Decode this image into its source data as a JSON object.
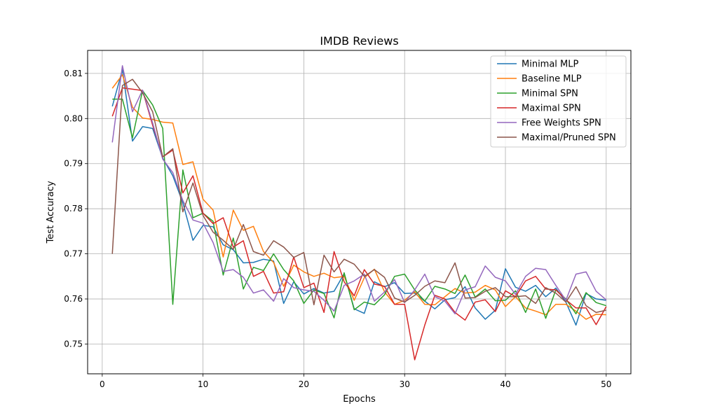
{
  "chart_data": {
    "type": "line",
    "title": "IMDB Reviews",
    "xlabel": "Epochs",
    "ylabel": "Test Accuracy",
    "xlim": [
      -1.45,
      52.45
    ],
    "ylim": [
      0.7434,
      0.8151
    ],
    "xticks": [
      0,
      10,
      20,
      30,
      40,
      50
    ],
    "yticks": [
      0.75,
      0.76,
      0.77,
      0.78,
      0.79,
      0.8,
      0.81
    ],
    "ytick_labels": [
      "0.75",
      "0.76",
      "0.77",
      "0.78",
      "0.79",
      "0.80",
      "0.81"
    ],
    "grid": true,
    "legend_position": "top-right",
    "x": [
      1,
      2,
      3,
      4,
      5,
      6,
      7,
      8,
      9,
      10,
      11,
      12,
      13,
      14,
      15,
      16,
      17,
      18,
      19,
      20,
      21,
      22,
      23,
      24,
      25,
      26,
      27,
      28,
      29,
      30,
      31,
      32,
      33,
      34,
      35,
      36,
      37,
      38,
      39,
      40,
      41,
      42,
      43,
      44,
      45,
      46,
      47,
      48,
      49,
      50
    ],
    "series": [
      {
        "name": "Minimal MLP",
        "color": "#1f77b4",
        "values": [
          0.8027,
          0.8108,
          0.795,
          0.7982,
          0.7978,
          0.7912,
          0.7873,
          0.7813,
          0.773,
          0.7763,
          0.776,
          0.772,
          0.7709,
          0.768,
          0.7681,
          0.7688,
          0.7684,
          0.759,
          0.7638,
          0.7611,
          0.7623,
          0.7613,
          0.7617,
          0.7656,
          0.7578,
          0.7568,
          0.7638,
          0.7627,
          0.7636,
          0.7612,
          0.7613,
          0.7595,
          0.7578,
          0.7598,
          0.7603,
          0.7627,
          0.758,
          0.7555,
          0.7575,
          0.7667,
          0.7626,
          0.7617,
          0.763,
          0.7605,
          0.7624,
          0.7593,
          0.7542,
          0.7612,
          0.76,
          0.7597
        ]
      },
      {
        "name": "Baseline MLP",
        "color": "#ff7f0e",
        "values": [
          0.8067,
          0.8097,
          0.8025,
          0.8001,
          0.7998,
          0.7992,
          0.799,
          0.7898,
          0.7904,
          0.7821,
          0.7797,
          0.7693,
          0.7797,
          0.7752,
          0.7761,
          0.7705,
          0.7681,
          0.7628,
          0.7675,
          0.766,
          0.765,
          0.7657,
          0.7647,
          0.765,
          0.7597,
          0.7647,
          0.7666,
          0.7616,
          0.7588,
          0.7597,
          0.7616,
          0.7588,
          0.7587,
          0.7605,
          0.7623,
          0.7613,
          0.7615,
          0.763,
          0.762,
          0.7583,
          0.7605,
          0.758,
          0.7573,
          0.7565,
          0.7588,
          0.7588,
          0.7573,
          0.7555,
          0.7566,
          0.7565
        ]
      },
      {
        "name": "Minimal SPN",
        "color": "#2ca02c",
        "values": [
          0.8043,
          0.8043,
          0.7957,
          0.8062,
          0.803,
          0.7978,
          0.7588,
          0.7886,
          0.778,
          0.779,
          0.7772,
          0.7653,
          0.7735,
          0.7622,
          0.767,
          0.7663,
          0.77,
          0.7665,
          0.764,
          0.759,
          0.762,
          0.7612,
          0.7558,
          0.7658,
          0.7576,
          0.7593,
          0.7587,
          0.7609,
          0.765,
          0.7655,
          0.762,
          0.7595,
          0.7628,
          0.7622,
          0.7612,
          0.7653,
          0.7604,
          0.7622,
          0.7596,
          0.7597,
          0.7618,
          0.757,
          0.7622,
          0.7557,
          0.762,
          0.76,
          0.7567,
          0.7614,
          0.7592,
          0.7585
        ]
      },
      {
        "name": "Maximal SPN",
        "color": "#d62728",
        "values": [
          0.8005,
          0.8068,
          0.8065,
          0.8062,
          0.7985,
          0.7915,
          0.793,
          0.7835,
          0.7873,
          0.779,
          0.7767,
          0.778,
          0.7715,
          0.7729,
          0.765,
          0.7661,
          0.7613,
          0.7616,
          0.7693,
          0.7625,
          0.7635,
          0.757,
          0.7705,
          0.7638,
          0.7607,
          0.7665,
          0.7633,
          0.7628,
          0.7588,
          0.7588,
          0.7465,
          0.7542,
          0.7608,
          0.76,
          0.757,
          0.7553,
          0.7593,
          0.7598,
          0.7572,
          0.7618,
          0.7605,
          0.764,
          0.765,
          0.7622,
          0.762,
          0.7598,
          0.758,
          0.758,
          0.7543,
          0.7583
        ]
      },
      {
        "name": "Free Weights SPN",
        "color": "#9467bd",
        "values": [
          0.7947,
          0.8117,
          0.8015,
          0.8063,
          0.799,
          0.791,
          0.788,
          0.7818,
          0.7775,
          0.7768,
          0.7725,
          0.7661,
          0.7665,
          0.7648,
          0.7613,
          0.762,
          0.7595,
          0.7645,
          0.7625,
          0.762,
          0.7617,
          0.7597,
          0.7573,
          0.763,
          0.764,
          0.7655,
          0.7595,
          0.7615,
          0.7643,
          0.7592,
          0.762,
          0.7655,
          0.7605,
          0.7595,
          0.7567,
          0.762,
          0.7627,
          0.7673,
          0.7648,
          0.764,
          0.761,
          0.765,
          0.7668,
          0.7665,
          0.763,
          0.7597,
          0.7655,
          0.766,
          0.7617,
          0.7598
        ]
      },
      {
        "name": "Maximal/Pruned SPN",
        "color": "#8c564b",
        "values": [
          0.77,
          0.8073,
          0.8087,
          0.8057,
          0.8015,
          0.7915,
          0.7933,
          0.7793,
          0.7857,
          0.7785,
          0.7748,
          0.773,
          0.771,
          0.7765,
          0.7705,
          0.7697,
          0.7729,
          0.7715,
          0.7692,
          0.7703,
          0.7587,
          0.7697,
          0.766,
          0.7688,
          0.7677,
          0.765,
          0.7665,
          0.7648,
          0.7602,
          0.7593,
          0.7608,
          0.7628,
          0.764,
          0.7636,
          0.768,
          0.7602,
          0.7603,
          0.7617,
          0.7625,
          0.7605,
          0.7605,
          0.7607,
          0.759,
          0.7625,
          0.7613,
          0.7593,
          0.7627,
          0.7585,
          0.757,
          0.7575
        ]
      }
    ]
  }
}
